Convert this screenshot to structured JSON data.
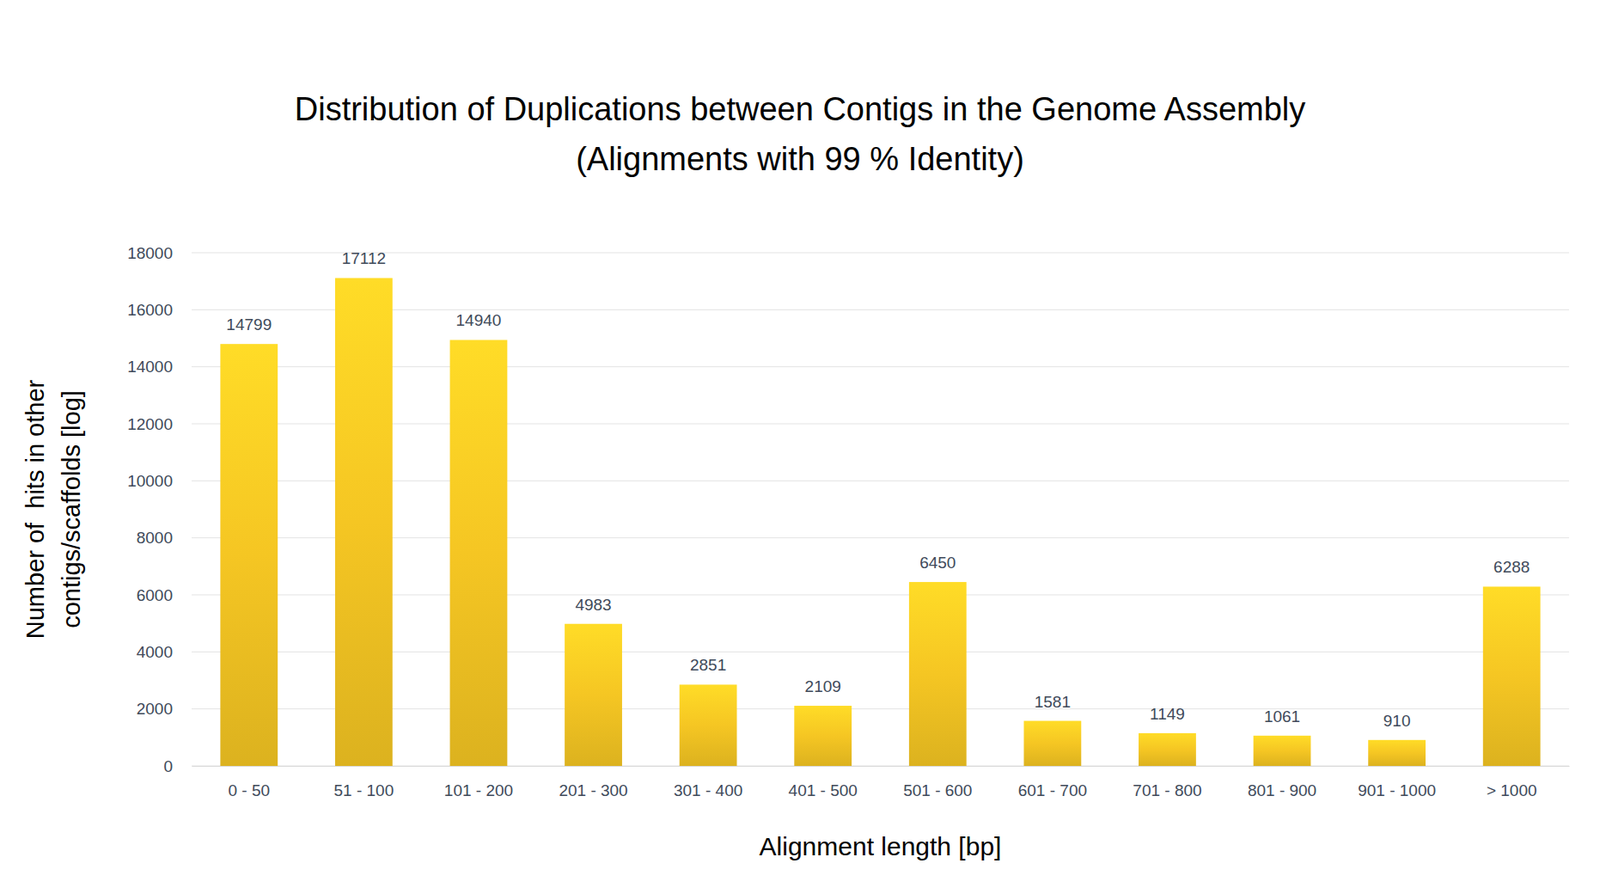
{
  "chart_data": {
    "type": "bar",
    "title": "Distribution of Duplications between Contigs in the Genome Assembly",
    "subtitle": "(Alignments with 99 % Identity)",
    "x_label": "Alignment length [bp]",
    "y_label": "Number of  hits in other contigs/scaffolds [log]",
    "categories": [
      "0 - 50",
      "51 - 100",
      "101 - 200",
      "201 - 300",
      "301 - 400",
      "401 - 500",
      "501 - 600",
      "601 - 700",
      "701 - 800",
      "801 - 900",
      "901 - 1000",
      "> 1000"
    ],
    "values": [
      14799,
      17112,
      14940,
      4983,
      2851,
      2109,
      6450,
      1581,
      1149,
      1061,
      910,
      6288
    ],
    "color": "#f5c623",
    "ylim": [
      0,
      18000
    ],
    "yticks": [
      0,
      2000,
      4000,
      6000,
      8000,
      10000,
      12000,
      14000,
      16000,
      18000
    ],
    "grid": true,
    "data_labels": true
  }
}
